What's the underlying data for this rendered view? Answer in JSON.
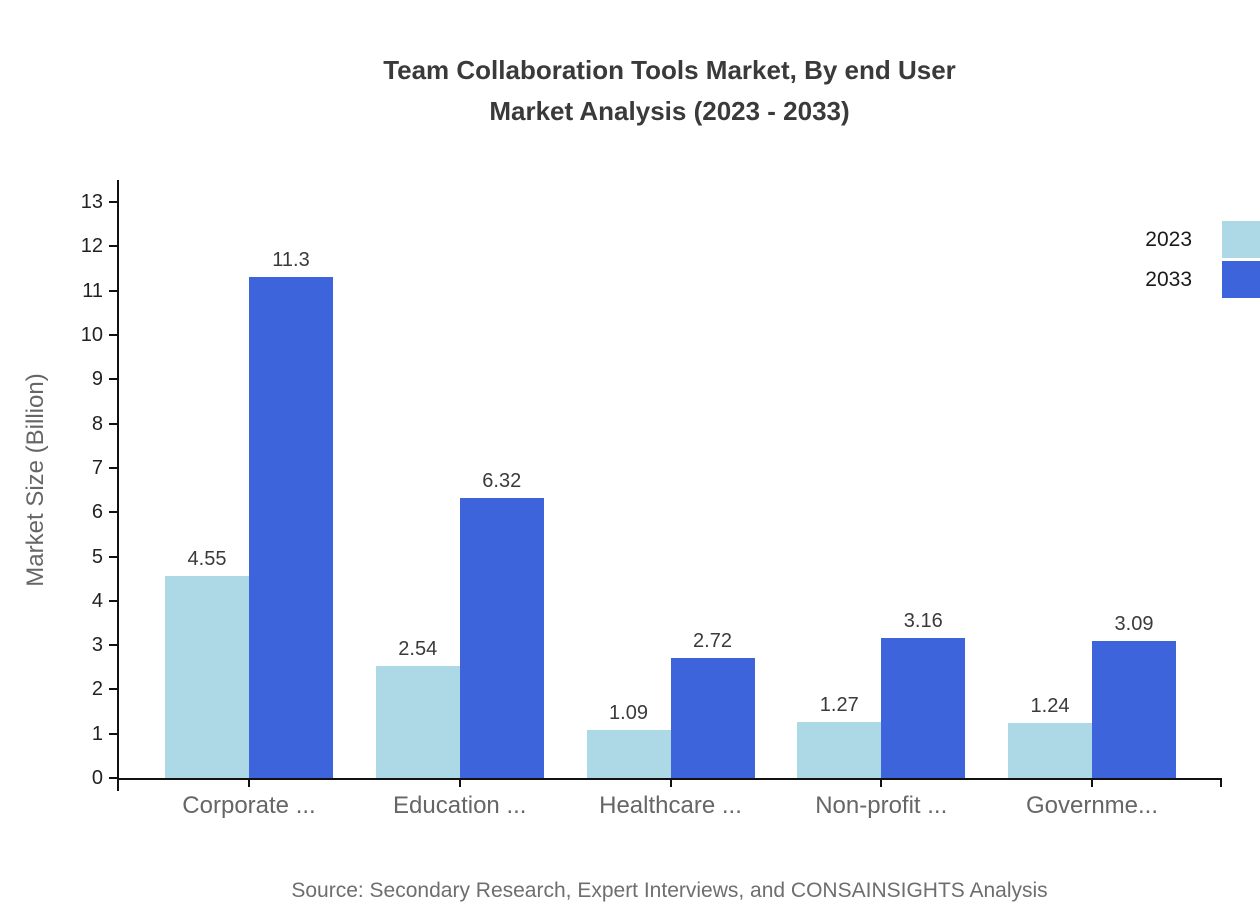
{
  "title": {
    "line1": "Team Collaboration Tools Market, By end User",
    "line2": "Market Analysis (2023 - 2033)"
  },
  "source": "Source: Secondary Research, Expert Interviews, and CONSAINSIGHTS Analysis",
  "chart_data": {
    "type": "bar",
    "title": "Team Collaboration Tools Market, By end User Market Analysis (2023 - 2033)",
    "xlabel": "",
    "ylabel": "Market Size (Billion)",
    "categories": [
      "Corporate ...",
      "Education ...",
      "Healthcare ...",
      "Non-profit ...",
      "Governme..."
    ],
    "series": [
      {
        "name": "2023",
        "color": "#ADD8E6",
        "values": [
          4.55,
          2.54,
          1.09,
          1.27,
          1.24
        ]
      },
      {
        "name": "2033",
        "color": "#3E64DC",
        "values": [
          11.3,
          6.32,
          2.72,
          3.16,
          3.09
        ]
      }
    ],
    "ylim": [
      0,
      13.5
    ],
    "yticks": [
      0,
      1,
      2,
      3,
      4,
      5,
      6,
      7,
      8,
      9,
      10,
      11,
      12,
      13
    ],
    "grid": false,
    "legend_position": "top-right",
    "axis_color": "#111111"
  }
}
